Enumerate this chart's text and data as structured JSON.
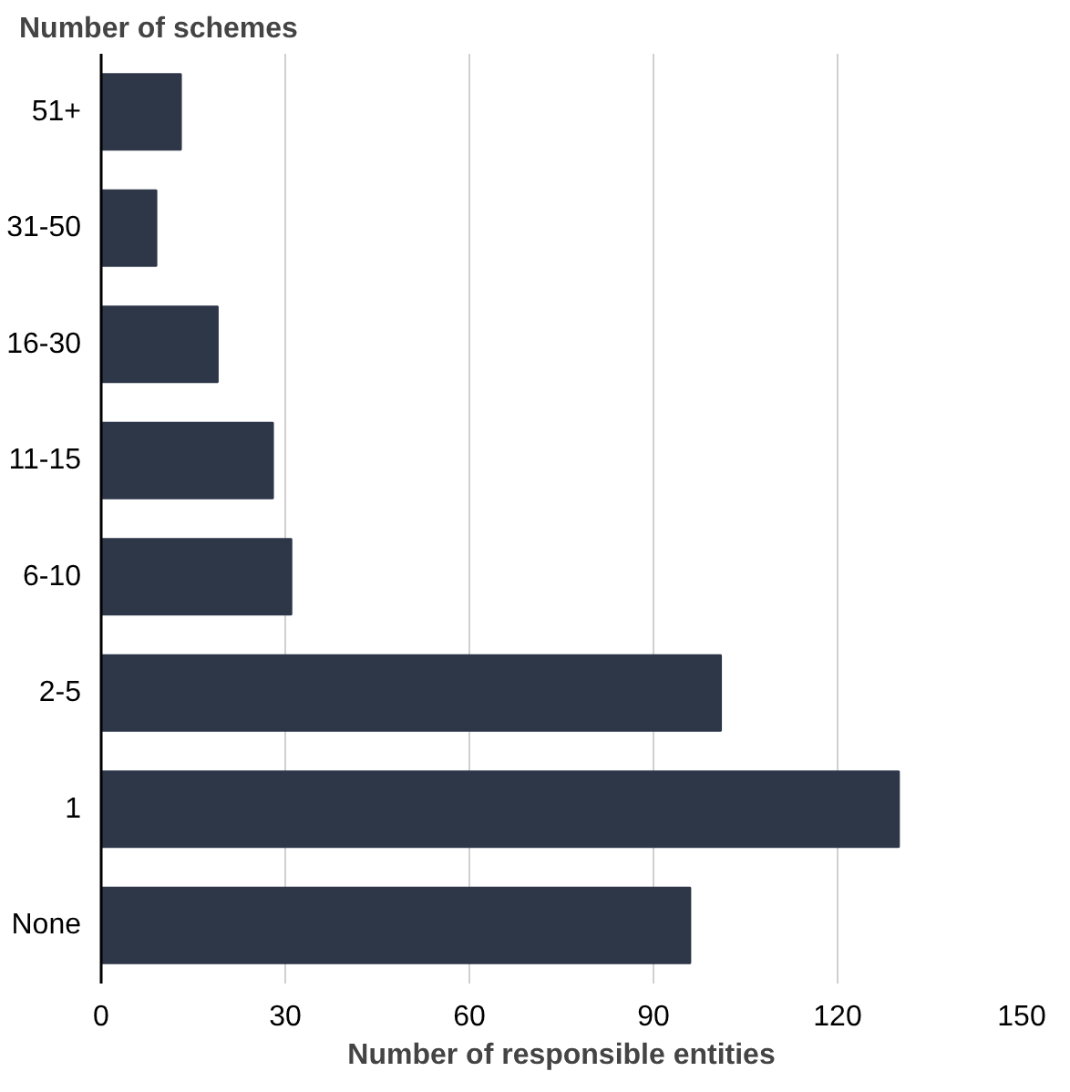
{
  "chart_data": {
    "type": "bar",
    "orientation": "horizontal",
    "ylabel": "Number of schemes",
    "xlabel": "Number of responsible entities",
    "categories": [
      "51+",
      "31-50",
      "16-30",
      "11-15",
      "6-10",
      "2-5",
      "1",
      "None"
    ],
    "values": [
      13,
      9,
      19,
      28,
      31,
      101,
      130,
      96
    ],
    "color": "#2d3748",
    "xlim": [
      0,
      150
    ],
    "xticks": [
      0,
      30,
      60,
      90,
      120,
      150
    ],
    "grid": "x"
  }
}
